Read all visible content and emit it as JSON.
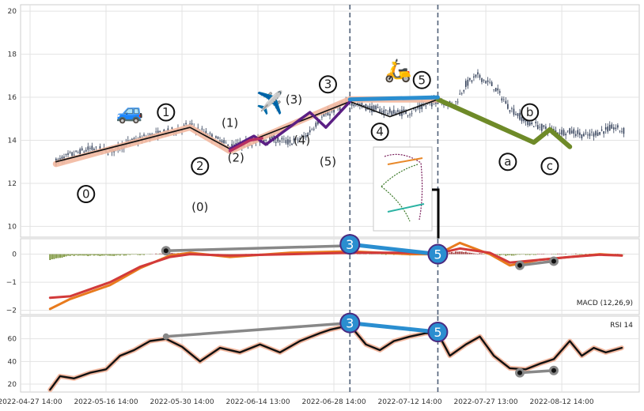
{
  "chart_data": {
    "type": "line",
    "title": "",
    "x_ticks": [
      "2022-04-27 14:00",
      "2022-05-16 14:00",
      "2022-05-30 14:00",
      "2022-06-14 13:00",
      "2022-06-28 14:00",
      "2022-07-12 14:00",
      "2022-07-27 13:00",
      "2022-08-12 14:00"
    ],
    "x_tick_bars": [
      0,
      38,
      76,
      114,
      152,
      190,
      228,
      266
    ],
    "bar_count": 300,
    "vertical_markers_bar": [
      160,
      204
    ],
    "marker_color": "#506078",
    "panels": [
      {
        "name": "price",
        "ylim": [
          9.5,
          20.3
        ],
        "yticks": [
          "10",
          "12",
          "14",
          "16",
          "18",
          "20"
        ],
        "ytick_values": [
          10,
          12,
          14,
          16,
          18,
          20
        ],
        "candle_color": "#34415a",
        "close_path": [
          [
            13,
            13.0
          ],
          [
            20,
            13.3
          ],
          [
            30,
            13.6
          ],
          [
            40,
            13.5
          ],
          [
            50,
            13.9
          ],
          [
            60,
            14.2
          ],
          [
            70,
            14.4
          ],
          [
            80,
            14.7
          ],
          [
            90,
            14.2
          ],
          [
            100,
            13.7
          ],
          [
            110,
            13.9
          ],
          [
            120,
            14.1
          ],
          [
            130,
            13.9
          ],
          [
            138,
            14.2
          ],
          [
            145,
            15.0
          ],
          [
            152,
            15.4
          ],
          [
            160,
            15.8
          ],
          [
            170,
            15.5
          ],
          [
            180,
            15.3
          ],
          [
            190,
            15.3
          ],
          [
            200,
            15.7
          ],
          [
            204,
            15.9
          ],
          [
            212,
            15.6
          ],
          [
            218,
            16.6
          ],
          [
            224,
            17.0
          ],
          [
            232,
            16.5
          ],
          [
            240,
            15.5
          ],
          [
            248,
            14.9
          ],
          [
            256,
            14.6
          ],
          [
            264,
            14.4
          ],
          [
            272,
            14.4
          ],
          [
            278,
            14.2
          ],
          [
            285,
            14.4
          ],
          [
            292,
            14.6
          ],
          [
            298,
            14.4
          ]
        ],
        "wave_degree_major": {
          "color": "#f2b8a0",
          "points": [
            [
              13,
              12.9
            ],
            [
              80,
              14.6
            ],
            [
              100,
              13.5
            ],
            [
              160,
              15.9
            ],
            [
              204,
              15.9
            ]
          ]
        },
        "wave_degree_minor_lines": [
          {
            "color": "#111111",
            "points": [
              [
                13,
                13.0
              ],
              [
                80,
                14.6
              ],
              [
                100,
                13.6
              ],
              [
                160,
                15.8
              ],
              [
                180,
                15.1
              ],
              [
                204,
                15.9
              ]
            ]
          },
          {
            "color": "#5b1f84",
            "points": [
              [
                100,
                13.6
              ],
              [
                112,
                14.2
              ],
              [
                118,
                13.8
              ],
              [
                140,
                15.3
              ],
              [
                148,
                14.6
              ],
              [
                160,
                15.8
              ]
            ]
          },
          {
            "color": "#b83060",
            "points": [
              [
                100,
                13.5
              ],
              [
                110,
                14.0
              ],
              [
                116,
                14.1
              ]
            ]
          }
        ],
        "trend_after": {
          "color": "#6e8a28",
          "points": [
            [
              204,
              15.9
            ],
            [
              252,
              13.9
            ],
            [
              260,
              14.5
            ],
            [
              270,
              13.7
            ]
          ]
        },
        "connector": {
          "color": "#2a8ed0",
          "points": [
            [
              160,
              15.9
            ],
            [
              204,
              16.0
            ]
          ]
        },
        "labels": [
          {
            "text": "0",
            "x": 28,
            "y": 11.5,
            "circled": true
          },
          {
            "text": "1",
            "x": 68,
            "y": 15.3,
            "circled": true
          },
          {
            "text": "2",
            "x": 85,
            "y": 12.8,
            "circled": true
          },
          {
            "text": "3",
            "x": 149,
            "y": 16.6,
            "circled": true
          },
          {
            "text": "4",
            "x": 175,
            "y": 14.4,
            "circled": true
          },
          {
            "text": "5",
            "x": 196,
            "y": 16.8,
            "circled": true
          },
          {
            "text": "(0)",
            "x": 85,
            "y": 10.9,
            "circled": false
          },
          {
            "text": "(1)",
            "x": 100,
            "y": 14.8,
            "circled": false
          },
          {
            "text": "(2)",
            "x": 103,
            "y": 13.2,
            "circled": false
          },
          {
            "text": "(3)",
            "x": 132,
            "y": 15.9,
            "circled": false
          },
          {
            "text": "(4)",
            "x": 136,
            "y": 14.0,
            "circled": false
          },
          {
            "text": "(5)",
            "x": 149,
            "y": 13.0,
            "circled": false
          },
          {
            "text": "a",
            "x": 239,
            "y": 13.0,
            "circled": true
          },
          {
            "text": "b",
            "x": 250,
            "y": 15.3,
            "circled": true
          },
          {
            "text": "c",
            "x": 260,
            "y": 12.8,
            "circled": true
          }
        ],
        "emoji_marks": [
          {
            "emoji": "🚙",
            "x": 50,
            "y": 15.0
          },
          {
            "emoji": "✈️",
            "x": 120,
            "y": 15.4
          },
          {
            "emoji": "🛵",
            "x": 184,
            "y": 16.9
          }
        ]
      },
      {
        "name": "macd",
        "label": "MACD (12,26,9)",
        "ylim": [
          -2.15,
          0.55
        ],
        "yticks": [
          "0",
          "−1",
          "−2"
        ],
        "ytick_values": [
          0,
          -1,
          -2
        ],
        "line_macd": {
          "color": "#e87b1e",
          "points": [
            [
              10,
              -1.95
            ],
            [
              20,
              -1.6
            ],
            [
              40,
              -1.1
            ],
            [
              55,
              -0.5
            ],
            [
              70,
              -0.05
            ],
            [
              80,
              0.05
            ],
            [
              100,
              -0.1
            ],
            [
              130,
              0.05
            ],
            [
              160,
              0.1
            ],
            [
              190,
              0.0
            ],
            [
              204,
              0.0
            ],
            [
              215,
              0.4
            ],
            [
              230,
              0.0
            ],
            [
              240,
              -0.4
            ],
            [
              255,
              -0.2
            ],
            [
              270,
              -0.1
            ],
            [
              285,
              0.0
            ],
            [
              296,
              -0.05
            ]
          ]
        },
        "line_signal": {
          "color": "#d23a3a",
          "points": [
            [
              10,
              -1.55
            ],
            [
              20,
              -1.5
            ],
            [
              40,
              -1.0
            ],
            [
              55,
              -0.45
            ],
            [
              70,
              -0.1
            ],
            [
              80,
              0.0
            ],
            [
              100,
              -0.05
            ],
            [
              130,
              0.0
            ],
            [
              160,
              0.05
            ],
            [
              190,
              0.05
            ],
            [
              204,
              0.02
            ],
            [
              215,
              0.2
            ],
            [
              230,
              0.05
            ],
            [
              240,
              -0.3
            ],
            [
              255,
              -0.2
            ],
            [
              270,
              -0.1
            ],
            [
              285,
              -0.02
            ],
            [
              296,
              -0.05
            ]
          ]
        },
        "histogram_positive_color": "#9a2a2a",
        "histogram_negative_color": "#6e8a28",
        "connectors": [
          {
            "color": "#888888",
            "points": [
              [
                68,
                0.12
              ],
              [
                160,
                0.3
              ]
            ],
            "end_dots": true
          },
          {
            "color": "#888888",
            "points": [
              [
                245,
                -0.4
              ],
              [
                262,
                -0.25
              ]
            ],
            "end_dots": true
          },
          {
            "color": "#2a8ed0",
            "points": [
              [
                160,
                0.35
              ],
              [
                204,
                0.0
              ]
            ],
            "end_dots": false
          }
        ],
        "bubbles": [
          {
            "text": "3",
            "x": 160,
            "y": 0.35
          },
          {
            "text": "5",
            "x": 204,
            "y": 0.0
          }
        ]
      },
      {
        "name": "rsi",
        "label": "RSI 14",
        "ylim": [
          13,
          80
        ],
        "yticks": [
          "20",
          "40",
          "60"
        ],
        "ytick_values": [
          20,
          40,
          60
        ],
        "line_rsi": {
          "color": "#111111",
          "halo": "#f2b8a0",
          "points": [
            [
              10,
              15
            ],
            [
              15,
              27
            ],
            [
              22,
              25
            ],
            [
              30,
              30
            ],
            [
              38,
              33
            ],
            [
              45,
              45
            ],
            [
              52,
              50
            ],
            [
              60,
              58
            ],
            [
              68,
              60
            ],
            [
              76,
              53
            ],
            [
              85,
              40
            ],
            [
              95,
              52
            ],
            [
              105,
              48
            ],
            [
              115,
              55
            ],
            [
              125,
              48
            ],
            [
              135,
              58
            ],
            [
              145,
              65
            ],
            [
              150,
              68
            ],
            [
              160,
              72
            ],
            [
              168,
              55
            ],
            [
              175,
              50
            ],
            [
              182,
              58
            ],
            [
              190,
              62
            ],
            [
              198,
              65
            ],
            [
              204,
              65
            ],
            [
              210,
              45
            ],
            [
              218,
              55
            ],
            [
              225,
              62
            ],
            [
              232,
              45
            ],
            [
              240,
              34
            ],
            [
              248,
              33
            ],
            [
              255,
              38
            ],
            [
              262,
              42
            ],
            [
              270,
              58
            ],
            [
              276,
              45
            ],
            [
              282,
              52
            ],
            [
              288,
              48
            ],
            [
              296,
              52
            ]
          ]
        },
        "connectors": [
          {
            "color": "#888888",
            "points": [
              [
                68,
                62
              ],
              [
                160,
                74
              ]
            ],
            "end_dots": false
          },
          {
            "color": "#888888",
            "points": [
              [
                245,
                30
              ],
              [
                262,
                32
              ]
            ],
            "end_dots": true
          },
          {
            "color": "#2a8ed0",
            "points": [
              [
                160,
                74
              ],
              [
                204,
                66
              ]
            ],
            "end_dots": false
          }
        ],
        "bubbles": [
          {
            "text": "3",
            "x": 160,
            "y": 74
          },
          {
            "text": "5",
            "x": 204,
            "y": 66
          }
        ]
      }
    ],
    "legend_placement": "none",
    "grid": true
  }
}
